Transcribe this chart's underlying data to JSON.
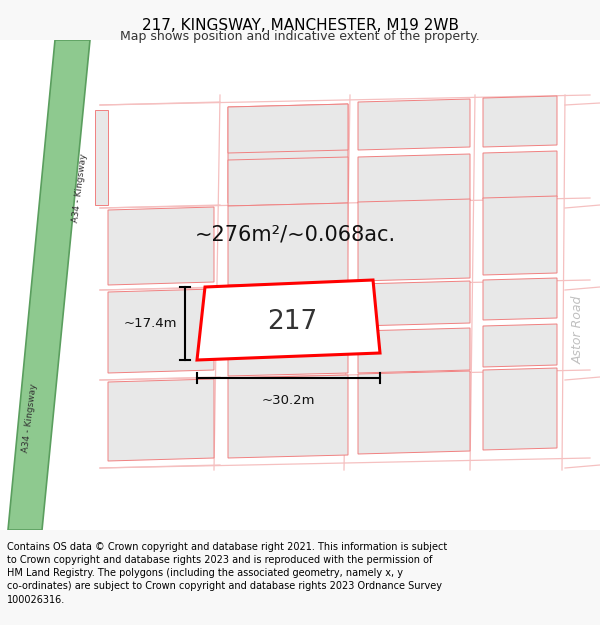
{
  "title": "217, KINGSWAY, MANCHESTER, M19 2WB",
  "subtitle": "Map shows position and indicative extent of the property.",
  "footer": "Contains OS data © Crown copyright and database right 2021. This information is subject to Crown copyright and database rights 2023 and is reproduced with the permission of HM Land Registry. The polygons (including the associated geometry, namely x, y co-ordinates) are subject to Crown copyright and database rights 2023 Ordnance Survey 100026316.",
  "area_label": "~276m²/~0.068ac.",
  "width_label": "~30.2m",
  "height_label": "~17.4m",
  "property_number": "217",
  "map_bg": "#ffffff",
  "road_green_color": "#8ec98f",
  "road_green_border": "#5a9e5e",
  "road_pink_color": "#f5c0c0",
  "road_pink_outline": "#e8a0a0",
  "block_fill": "#e8e8e8",
  "block_outline": "#f08080",
  "property_fill": "#ffffff",
  "property_outline": "#ff0000",
  "astor_road_color": "#c8c8c8",
  "dim_line_color": "#000000",
  "title_fontsize": 11,
  "subtitle_fontsize": 9,
  "footer_fontsize": 7
}
